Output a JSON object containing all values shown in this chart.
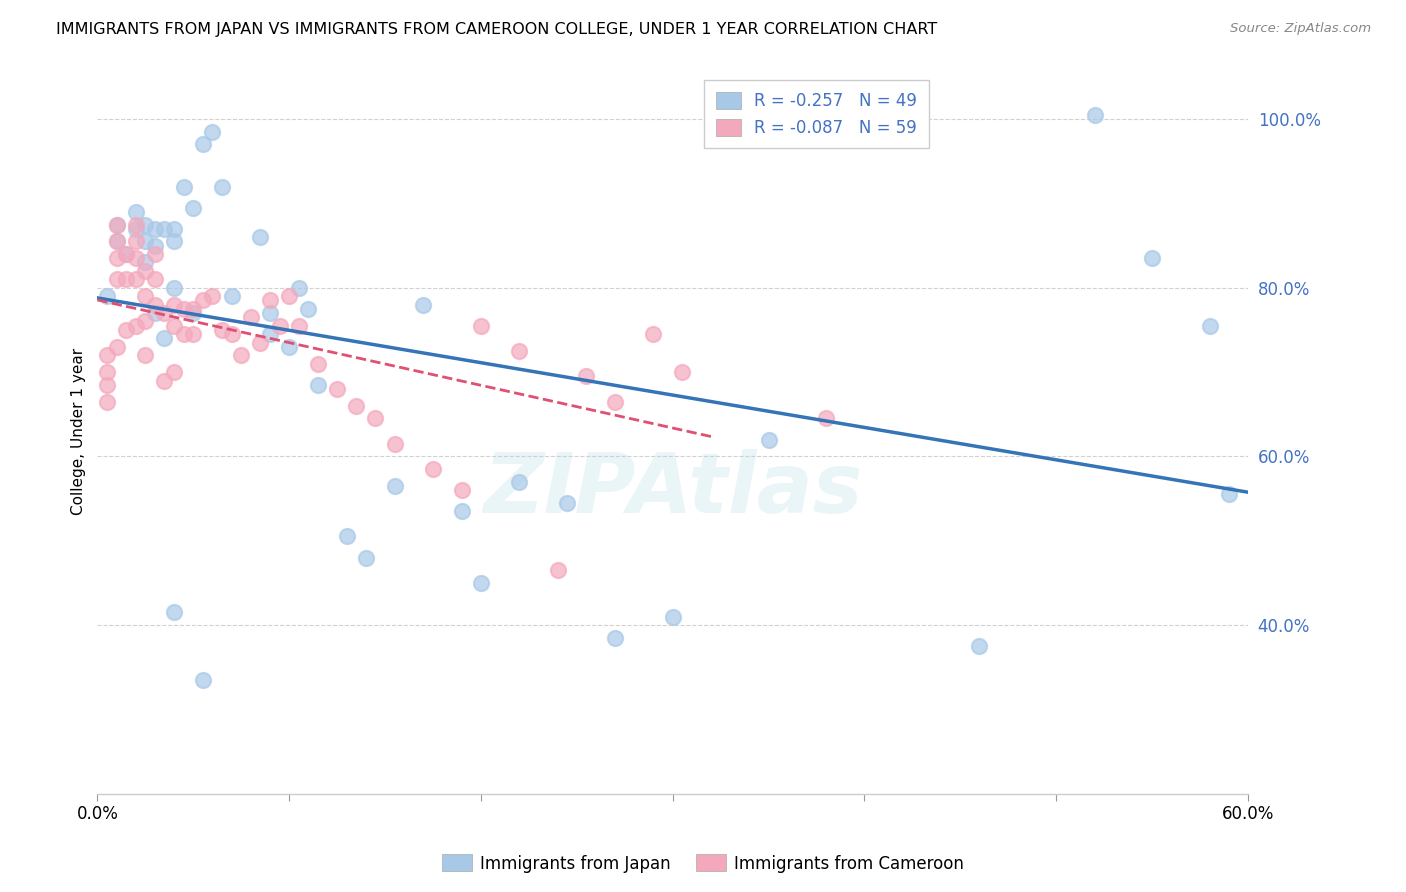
{
  "title": "IMMIGRANTS FROM JAPAN VS IMMIGRANTS FROM CAMEROON COLLEGE, UNDER 1 YEAR CORRELATION CHART",
  "source": "Source: ZipAtlas.com",
  "ylabel": "College, Under 1 year",
  "xlim": [
    0.0,
    0.6
  ],
  "ylim": [
    0.2,
    1.06
  ],
  "y_ticks": [
    0.4,
    0.6,
    0.8,
    1.0
  ],
  "y_tick_labels": [
    "40.0%",
    "60.0%",
    "80.0%",
    "100.0%"
  ],
  "x_ticks": [
    0.0,
    0.1,
    0.2,
    0.3,
    0.4,
    0.5,
    0.6
  ],
  "x_tick_labels": [
    "0.0%",
    "",
    "",
    "",
    "",
    "",
    "60.0%"
  ],
  "japan_color": "#a8c8e8",
  "cameroon_color": "#f4a8bc",
  "japan_R": -0.257,
  "japan_N": 49,
  "cameroon_R": -0.087,
  "cameroon_N": 59,
  "japan_line_color": "#3474b7",
  "cameroon_line_color": "#e05070",
  "japan_scatter_x": [
    0.005,
    0.01,
    0.01,
    0.015,
    0.02,
    0.02,
    0.025,
    0.025,
    0.025,
    0.03,
    0.03,
    0.03,
    0.035,
    0.035,
    0.04,
    0.04,
    0.04,
    0.045,
    0.05,
    0.05,
    0.055,
    0.06,
    0.065,
    0.07,
    0.085,
    0.09,
    0.09,
    0.1,
    0.105,
    0.11,
    0.13,
    0.14,
    0.155,
    0.17,
    0.19,
    0.2,
    0.22,
    0.27,
    0.3,
    0.35,
    0.46,
    0.52,
    0.55,
    0.58,
    0.59,
    0.04,
    0.055,
    0.115,
    0.245
  ],
  "japan_scatter_y": [
    0.79,
    0.875,
    0.855,
    0.84,
    0.89,
    0.87,
    0.875,
    0.855,
    0.83,
    0.87,
    0.85,
    0.77,
    0.74,
    0.87,
    0.87,
    0.855,
    0.8,
    0.92,
    0.895,
    0.77,
    0.97,
    0.985,
    0.92,
    0.79,
    0.86,
    0.77,
    0.745,
    0.73,
    0.8,
    0.775,
    0.505,
    0.48,
    0.565,
    0.78,
    0.535,
    0.45,
    0.57,
    0.385,
    0.41,
    0.62,
    0.375,
    1.005,
    0.835,
    0.755,
    0.555,
    0.415,
    0.335,
    0.685,
    0.545
  ],
  "cameroon_scatter_x": [
    0.005,
    0.005,
    0.005,
    0.005,
    0.01,
    0.01,
    0.01,
    0.01,
    0.01,
    0.015,
    0.015,
    0.015,
    0.02,
    0.02,
    0.02,
    0.02,
    0.02,
    0.025,
    0.025,
    0.025,
    0.025,
    0.03,
    0.03,
    0.03,
    0.035,
    0.035,
    0.04,
    0.04,
    0.04,
    0.045,
    0.045,
    0.05,
    0.05,
    0.055,
    0.06,
    0.065,
    0.07,
    0.075,
    0.08,
    0.085,
    0.09,
    0.095,
    0.1,
    0.105,
    0.115,
    0.125,
    0.135,
    0.145,
    0.155,
    0.175,
    0.19,
    0.2,
    0.22,
    0.24,
    0.255,
    0.27,
    0.29,
    0.305,
    0.38
  ],
  "cameroon_scatter_y": [
    0.72,
    0.7,
    0.685,
    0.665,
    0.875,
    0.855,
    0.835,
    0.81,
    0.73,
    0.84,
    0.81,
    0.75,
    0.875,
    0.855,
    0.835,
    0.81,
    0.755,
    0.82,
    0.79,
    0.76,
    0.72,
    0.84,
    0.81,
    0.78,
    0.77,
    0.69,
    0.78,
    0.755,
    0.7,
    0.775,
    0.745,
    0.775,
    0.745,
    0.785,
    0.79,
    0.75,
    0.745,
    0.72,
    0.765,
    0.735,
    0.785,
    0.755,
    0.79,
    0.755,
    0.71,
    0.68,
    0.66,
    0.645,
    0.615,
    0.585,
    0.56,
    0.755,
    0.725,
    0.465,
    0.695,
    0.665,
    0.745,
    0.7,
    0.645
  ],
  "watermark": "ZIPAtlas",
  "background_color": "#ffffff",
  "grid_color": "#cccccc"
}
